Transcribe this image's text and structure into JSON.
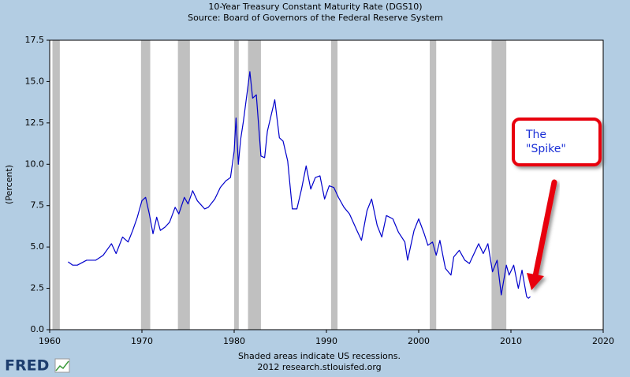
{
  "chart_data": {
    "type": "line",
    "title": "10-Year Treasury Constant Maturity Rate (DGS10)",
    "subtitle": "Source: Board of Governors of the Federal Reserve System",
    "y_label": "(Percent)",
    "footer": [
      "Shaded areas indicate US recessions.",
      "2012 research.stlouisfed.org"
    ],
    "logo": "FRED",
    "annotation": [
      "The",
      "\"Spike\""
    ],
    "color": "#0000cc",
    "recession_color": "#c0c0c0",
    "xlim": [
      1960,
      2020
    ],
    "xticks": [
      1960,
      1970,
      1980,
      1990,
      2000,
      2010,
      2020
    ],
    "ylim": [
      0,
      17.5
    ],
    "yticks": [
      {
        "value": 0,
        "label": "0.0"
      },
      {
        "value": 2.5,
        "label": "2.5"
      },
      {
        "value": 5,
        "label": "5.0"
      },
      {
        "value": 7.5,
        "label": "7.5"
      },
      {
        "value": 10,
        "label": "10.0"
      },
      {
        "value": 12.5,
        "label": "12.5"
      },
      {
        "value": 15,
        "label": "15.0"
      },
      {
        "value": 17.5,
        "label": "17.5"
      }
    ],
    "recessions": [
      [
        1960.3,
        1961.1
      ],
      [
        1969.9,
        1970.9
      ],
      [
        1973.9,
        1975.2
      ],
      [
        1980.0,
        1980.5
      ],
      [
        1981.5,
        1982.9
      ],
      [
        1990.5,
        1991.2
      ],
      [
        2001.2,
        2001.9
      ],
      [
        2007.9,
        2009.5
      ]
    ],
    "x": [
      1962.0,
      1962.5,
      1963.0,
      1964.0,
      1965.0,
      1965.8,
      1966.7,
      1967.2,
      1967.9,
      1968.5,
      1969.0,
      1969.5,
      1970.0,
      1970.4,
      1970.8,
      1971.2,
      1971.6,
      1972.0,
      1972.5,
      1973.0,
      1973.6,
      1974.0,
      1974.6,
      1975.0,
      1975.5,
      1976.0,
      1976.8,
      1977.2,
      1977.9,
      1978.5,
      1979.1,
      1979.6,
      1980.0,
      1980.2,
      1980.45,
      1980.7,
      1981.0,
      1981.7,
      1982.0,
      1982.4,
      1982.9,
      1983.3,
      1983.6,
      1984.4,
      1984.9,
      1985.3,
      1985.8,
      1986.3,
      1986.8,
      1987.3,
      1987.8,
      1988.3,
      1988.8,
      1989.3,
      1989.8,
      1990.3,
      1990.8,
      1991.3,
      1991.9,
      1992.5,
      1993.3,
      1993.8,
      1994.4,
      1994.9,
      1995.5,
      1996.0,
      1996.5,
      1997.2,
      1997.8,
      1998.5,
      1998.8,
      1999.5,
      2000.0,
      2000.6,
      2001.0,
      2001.5,
      2001.9,
      2002.3,
      2002.9,
      2003.5,
      2003.8,
      2004.4,
      2005.0,
      2005.5,
      2006.5,
      2007.0,
      2007.5,
      2008.0,
      2008.5,
      2008.95,
      2009.5,
      2009.8,
      2010.3,
      2010.8,
      2011.2,
      2011.7,
      2011.9,
      2012.1
    ],
    "values": [
      4.1,
      3.9,
      3.9,
      4.2,
      4.2,
      4.5,
      5.2,
      4.6,
      5.6,
      5.3,
      6.0,
      6.8,
      7.8,
      8.0,
      7.0,
      5.8,
      6.8,
      6.0,
      6.2,
      6.5,
      7.4,
      7.0,
      8.0,
      7.6,
      8.4,
      7.8,
      7.3,
      7.4,
      7.9,
      8.6,
      9.0,
      9.2,
      10.8,
      12.8,
      10.0,
      11.5,
      12.6,
      15.6,
      14.0,
      14.2,
      10.5,
      10.4,
      12.0,
      13.9,
      11.6,
      11.4,
      10.2,
      7.3,
      7.3,
      8.5,
      9.9,
      8.5,
      9.2,
      9.3,
      7.9,
      8.7,
      8.6,
      8.0,
      7.4,
      7.0,
      6.0,
      5.4,
      7.2,
      7.9,
      6.3,
      5.6,
      6.9,
      6.7,
      5.9,
      5.3,
      4.2,
      6.0,
      6.7,
      5.8,
      5.1,
      5.3,
      4.5,
      5.4,
      3.7,
      3.3,
      4.4,
      4.8,
      4.2,
      4.0,
      5.2,
      4.6,
      5.2,
      3.5,
      4.2,
      2.1,
      3.9,
      3.3,
      3.9,
      2.5,
      3.6,
      2.0,
      1.9,
      2.0
    ]
  }
}
